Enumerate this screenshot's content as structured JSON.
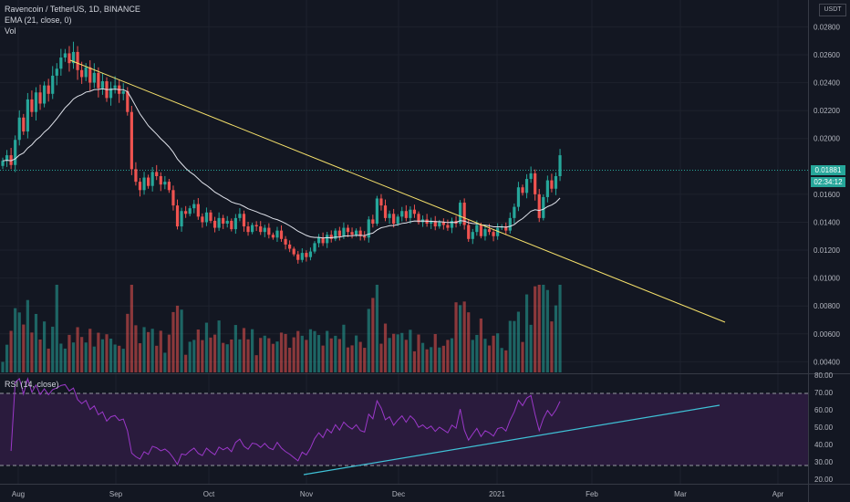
{
  "header": {
    "symbol": "Ravencoin / TetherUS, 1D, BINANCE",
    "ema_label": "EMA (21, close, 0)",
    "vol_label": "Vol",
    "rsi_label": "RSI (14, close)",
    "currency": "USDT"
  },
  "price_axis": {
    "ticks": [
      "0.02800",
      "0.02600",
      "0.02400",
      "0.02200",
      "0.02000",
      "0.01600",
      "0.01400",
      "0.01200",
      "0.01000",
      "0.00800",
      "0.00600",
      "0.00400"
    ],
    "last_price": "0.01881",
    "countdown": "02:34:12"
  },
  "rsi_axis": {
    "ticks": [
      "80.00",
      "70.00",
      "60.00",
      "50.00",
      "40.00",
      "30.00",
      "20.00"
    ]
  },
  "time_axis": {
    "labels": [
      "Aug",
      "Sep",
      "Oct",
      "Nov",
      "Dec",
      "2021",
      "Feb",
      "Mar",
      "Apr"
    ]
  },
  "colors": {
    "up": "#26a69a",
    "down": "#ef5350",
    "ema": "#e0e3eb",
    "trendline": "#f7e26b",
    "rsi_line": "#9b38c9",
    "rsi_band": "#2a1b3d",
    "rsi_trend": "#3fc1d6",
    "background": "#131722"
  },
  "chart_data": {
    "type": "candlestick",
    "title": "Ravencoin / TetherUS, 1D, BINANCE",
    "ylim": [
      0.0035,
      0.0294
    ],
    "rsi_ylim": [
      18,
      80
    ],
    "rsi_levels": [
      70,
      30
    ],
    "closes": [
      0.0184,
      0.0188,
      0.0181,
      0.0199,
      0.0215,
      0.0205,
      0.0228,
      0.0219,
      0.0233,
      0.0225,
      0.0238,
      0.0232,
      0.0245,
      0.025,
      0.0258,
      0.0261,
      0.0254,
      0.0262,
      0.0249,
      0.0244,
      0.0251,
      0.024,
      0.0247,
      0.0236,
      0.0241,
      0.0229,
      0.0236,
      0.0238,
      0.0232,
      0.0234,
      0.0219,
      0.0178,
      0.0169,
      0.0163,
      0.0172,
      0.0166,
      0.0176,
      0.0173,
      0.0167,
      0.0169,
      0.0163,
      0.0152,
      0.0137,
      0.0148,
      0.0146,
      0.015,
      0.0153,
      0.0144,
      0.014,
      0.0147,
      0.0141,
      0.0136,
      0.0143,
      0.0139,
      0.0141,
      0.0135,
      0.0143,
      0.0146,
      0.0137,
      0.0133,
      0.0138,
      0.0137,
      0.0133,
      0.0136,
      0.0131,
      0.0129,
      0.0134,
      0.0128,
      0.0124,
      0.0121,
      0.0117,
      0.0113,
      0.0118,
      0.0115,
      0.0119,
      0.0125,
      0.0129,
      0.0125,
      0.0131,
      0.0128,
      0.0134,
      0.013,
      0.0136,
      0.0133,
      0.0131,
      0.0134,
      0.013,
      0.0129,
      0.0142,
      0.0139,
      0.0157,
      0.0152,
      0.0143,
      0.0146,
      0.0139,
      0.0144,
      0.0148,
      0.0143,
      0.0149,
      0.0146,
      0.014,
      0.0142,
      0.0139,
      0.0141,
      0.0137,
      0.014,
      0.0138,
      0.0136,
      0.0141,
      0.0139,
      0.0154,
      0.0138,
      0.0128,
      0.0133,
      0.0138,
      0.013,
      0.0135,
      0.0133,
      0.013,
      0.0136,
      0.0137,
      0.0134,
      0.0143,
      0.0151,
      0.0165,
      0.0161,
      0.0171,
      0.0175,
      0.016,
      0.0143,
      0.0158,
      0.017,
      0.0164,
      0.0173,
      0.0188
    ]
  }
}
